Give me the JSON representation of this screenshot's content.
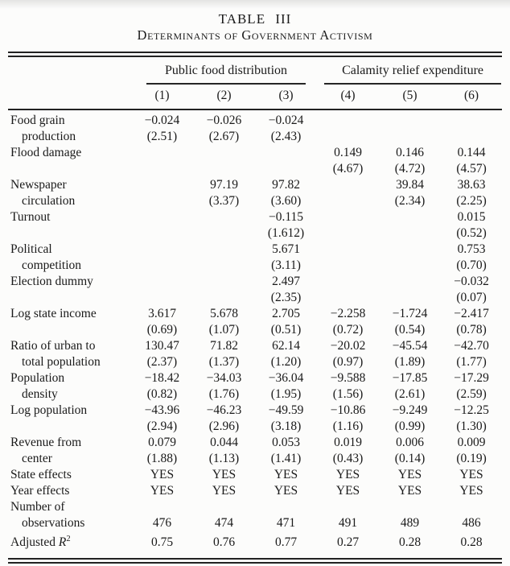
{
  "title": "TABLE III",
  "subtitle": "Determinants of Government Activism",
  "colors": {
    "text": "#1a1a1a",
    "rule": "#222222",
    "background": "#fcfcfb"
  },
  "groups": [
    {
      "label": "Public food distribution"
    },
    {
      "label": "Calamity relief expenditure"
    }
  ],
  "column_numbers": [
    "(1)",
    "(2)",
    "(3)",
    "(4)",
    "(5)",
    "(6)"
  ],
  "chart_data": {
    "type": "table",
    "title": "TABLE III — Determinants of Government Activism",
    "column_groups": [
      "Public food distribution (1)-(3)",
      "Calamity relief expenditure (4)-(6)"
    ],
    "columns": [
      "(1)",
      "(2)",
      "(3)",
      "(4)",
      "(5)",
      "(6)"
    ]
  },
  "rows": [
    {
      "lines": [
        {
          "label": "Food grain",
          "indent": false,
          "values": [
            "−0.024",
            "−0.026",
            "−0.024",
            "",
            "",
            ""
          ]
        },
        {
          "label": "production",
          "indent": true,
          "values": [
            "(2.51)",
            "(2.67)",
            "(2.43)",
            "",
            "",
            ""
          ]
        }
      ]
    },
    {
      "lines": [
        {
          "label": "Flood damage",
          "indent": false,
          "values": [
            "",
            "",
            "",
            "0.149",
            "0.146",
            "0.144"
          ]
        },
        {
          "label": "",
          "indent": false,
          "values": [
            "",
            "",
            "",
            "(4.67)",
            "(4.72)",
            "(4.57)"
          ]
        }
      ]
    },
    {
      "lines": [
        {
          "label": "Newspaper",
          "indent": false,
          "values": [
            "",
            "97.19",
            "97.82",
            "",
            "39.84",
            "38.63"
          ]
        },
        {
          "label": "circulation",
          "indent": true,
          "values": [
            "",
            "(3.37)",
            "(3.60)",
            "",
            "(2.34)",
            "(2.25)"
          ]
        }
      ]
    },
    {
      "lines": [
        {
          "label": "Turnout",
          "indent": false,
          "values": [
            "",
            "",
            "−0.115",
            "",
            "",
            "0.015"
          ]
        },
        {
          "label": "",
          "indent": false,
          "values": [
            "",
            "",
            "(1.612)",
            "",
            "",
            "(0.52)"
          ]
        }
      ]
    },
    {
      "lines": [
        {
          "label": "Political",
          "indent": false,
          "values": [
            "",
            "",
            "5.671",
            "",
            "",
            "0.753"
          ]
        },
        {
          "label": "competition",
          "indent": true,
          "values": [
            "",
            "",
            "(3.11)",
            "",
            "",
            "(0.70)"
          ]
        }
      ]
    },
    {
      "lines": [
        {
          "label": "Election dummy",
          "indent": false,
          "values": [
            "",
            "",
            "2.497",
            "",
            "",
            "−0.032"
          ]
        },
        {
          "label": "",
          "indent": false,
          "values": [
            "",
            "",
            "(2.35)",
            "",
            "",
            "(0.07)"
          ]
        }
      ]
    },
    {
      "lines": [
        {
          "label": "Log state income",
          "indent": false,
          "values": [
            "3.617",
            "5.678",
            "2.705",
            "−2.258",
            "−1.724",
            "−2.417"
          ]
        },
        {
          "label": "",
          "indent": false,
          "values": [
            "(0.69)",
            "(1.07)",
            "(0.51)",
            "(0.72)",
            "(0.54)",
            "(0.78)"
          ]
        }
      ]
    },
    {
      "lines": [
        {
          "label": "Ratio of urban to",
          "indent": false,
          "values": [
            "130.47",
            "71.82",
            "62.14",
            "−20.02",
            "−45.54",
            "−42.70"
          ]
        },
        {
          "label": "total population",
          "indent": true,
          "values": [
            "(2.37)",
            "(1.37)",
            "(1.20)",
            "(0.97)",
            "(1.89)",
            "(1.77)"
          ]
        }
      ]
    },
    {
      "lines": [
        {
          "label": "Population",
          "indent": false,
          "values": [
            "−18.42",
            "−34.03",
            "−36.04",
            "−9.588",
            "−17.85",
            "−17.29"
          ]
        },
        {
          "label": "density",
          "indent": true,
          "values": [
            "(0.82)",
            "(1.76)",
            "(1.95)",
            "(1.56)",
            "(2.61)",
            "(2.59)"
          ]
        }
      ]
    },
    {
      "lines": [
        {
          "label": "Log population",
          "indent": false,
          "values": [
            "−43.96",
            "−46.23",
            "−49.59",
            "−10.86",
            "−9.249",
            "−12.25"
          ]
        },
        {
          "label": "",
          "indent": false,
          "values": [
            "(2.94)",
            "(2.96)",
            "(3.18)",
            "(1.16)",
            "(0.99)",
            "(1.30)"
          ]
        }
      ]
    },
    {
      "lines": [
        {
          "label": "Revenue from",
          "indent": false,
          "values": [
            "0.079",
            "0.044",
            "0.053",
            "0.019",
            "0.006",
            "0.009"
          ]
        },
        {
          "label": "center",
          "indent": true,
          "values": [
            "(1.88)",
            "(1.13)",
            "(1.41)",
            "(0.43)",
            "(0.14)",
            "(0.19)"
          ]
        }
      ]
    },
    {
      "lines": [
        {
          "label": "State effects",
          "indent": false,
          "values": [
            "YES",
            "YES",
            "YES",
            "YES",
            "YES",
            "YES"
          ]
        }
      ]
    },
    {
      "lines": [
        {
          "label": "Year effects",
          "indent": false,
          "values": [
            "YES",
            "YES",
            "YES",
            "YES",
            "YES",
            "YES"
          ]
        }
      ]
    },
    {
      "lines": [
        {
          "label": "Number of",
          "indent": false,
          "values": [
            "",
            "",
            "",
            "",
            "",
            ""
          ]
        },
        {
          "label": "observations",
          "indent": true,
          "values": [
            "476",
            "474",
            "471",
            "491",
            "489",
            "486"
          ]
        }
      ]
    },
    {
      "lines": [
        {
          "label": "Adjusted *R*^2^",
          "indent": false,
          "values": [
            "0.75",
            "0.76",
            "0.77",
            "0.27",
            "0.28",
            "0.28"
          ]
        }
      ]
    }
  ]
}
